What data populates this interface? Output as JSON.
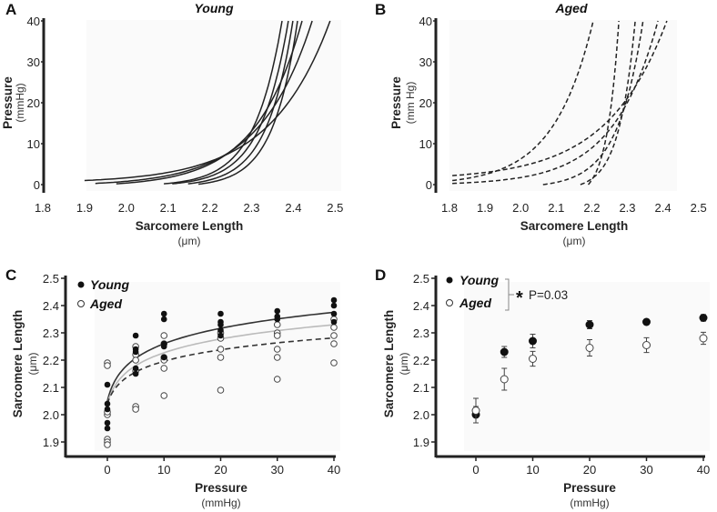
{
  "chart_data": [
    {
      "panel": "A",
      "type": "line",
      "title": "Young",
      "xlabel": "Sarcomere Length",
      "xunit": "(μm)",
      "ylabel": "Pressure",
      "yunit": "(mmHg)",
      "xlim": [
        1.8,
        2.5
      ],
      "ylim": [
        0,
        40
      ],
      "xticks": [
        "1.8",
        "1.9",
        "2.0",
        "2.1",
        "2.2",
        "2.3",
        "2.4",
        "2.5"
      ],
      "yticks": [
        "0",
        "10",
        "20",
        "30",
        "40"
      ],
      "curve_model": "P = p0 + (40-p0)*(exp(k*(SL-sl0))-1)/(exp(k*(sl40-sl0))-1)",
      "series": [
        {
          "sl0": 1.9,
          "p0": 1.0,
          "sl40": 2.488,
          "k": 7
        },
        {
          "sl0": 1.926,
          "p0": 0.3,
          "sl40": 2.445,
          "k": 8
        },
        {
          "sl0": 1.976,
          "p0": 0.2,
          "sl40": 2.421,
          "k": 9
        },
        {
          "sl0": 2.09,
          "p0": 0.2,
          "sl40": 2.373,
          "k": 15
        },
        {
          "sl0": 2.11,
          "p0": 0.2,
          "sl40": 2.388,
          "k": 15
        },
        {
          "sl0": 2.148,
          "p0": 0.2,
          "sl40": 2.399,
          "k": 16
        },
        {
          "sl0": 2.173,
          "p0": 0.1,
          "sl40": 2.41,
          "k": 17
        }
      ]
    },
    {
      "panel": "B",
      "type": "line",
      "title": "Aged",
      "xlabel": "Sarcomere Length",
      "xunit": "(μm)",
      "ylabel": "Pressure",
      "yunit": "(mm Hg)",
      "xlim": [
        1.8,
        2.5
      ],
      "ylim": [
        0,
        40
      ],
      "xticks": [
        "1.8",
        "1.9",
        "2.0",
        "2.1",
        "2.2",
        "2.3",
        "2.4",
        "2.5"
      ],
      "yticks": [
        "0",
        "10",
        "20",
        "30",
        "40"
      ],
      "series": [
        {
          "sl0": 1.808,
          "p0": 2.2,
          "sl40": 2.411,
          "k": 6
        },
        {
          "sl0": 1.808,
          "p0": 1.0,
          "sl40": 2.204,
          "k": 9
        },
        {
          "sl0": 1.808,
          "p0": 0.3,
          "sl40": 2.386,
          "k": 8
        },
        {
          "sl0": 2.063,
          "p0": 0.0,
          "sl40": 2.344,
          "k": 14
        },
        {
          "sl0": 2.168,
          "p0": 0.0,
          "sl40": 2.322,
          "k": 22
        },
        {
          "sl0": 2.19,
          "p0": 0.0,
          "sl40": 2.276,
          "k": 30
        }
      ]
    },
    {
      "panel": "C",
      "type": "scatter",
      "xlabel": "Pressure",
      "xunit": "(mmHg)",
      "ylabel": "Sarcomere Length",
      "yunit": "(μm)",
      "xlim": [
        -5,
        40
      ],
      "ylim": [
        1.85,
        2.5
      ],
      "xticks": [
        "0",
        "10",
        "20",
        "30",
        "40"
      ],
      "yticks": [
        "1.9",
        "2.0",
        "2.1",
        "2.2",
        "2.3",
        "2.4",
        "2.5"
      ],
      "legend": [
        "Young",
        "Aged"
      ],
      "legend_position": "top-left",
      "young": {
        "0": [
          2.11,
          2.04,
          2.02,
          1.97,
          1.95
        ],
        "5": [
          2.29,
          2.24,
          2.23,
          2.17,
          2.15
        ],
        "10": [
          2.37,
          2.35,
          2.26,
          2.25,
          2.21
        ],
        "20": [
          2.37,
          2.34,
          2.33,
          2.31,
          2.29
        ],
        "30": [
          2.38,
          2.36,
          2.35
        ],
        "40": [
          2.42,
          2.4,
          2.37,
          2.34
        ]
      },
      "aged": {
        "0": [
          2.19,
          2.18,
          2.0,
          2.01,
          1.91,
          1.9,
          1.89
        ],
        "5": [
          2.25,
          2.22,
          2.2,
          2.16,
          2.03,
          2.02
        ],
        "10": [
          2.29,
          2.26,
          2.21,
          2.2,
          2.17,
          2.07
        ],
        "20": [
          2.3,
          2.28,
          2.24,
          2.21,
          2.09
        ],
        "30": [
          2.33,
          2.3,
          2.29,
          2.24,
          2.21,
          2.13
        ],
        "40": [
          2.35,
          2.32,
          2.29,
          2.26,
          2.19
        ]
      },
      "fit_model": "SL = a + b*ln(1+P)",
      "fits": [
        {
          "name": "young-fit",
          "a": 2.05,
          "b": 0.0876,
          "color": "#333333",
          "dash": false
        },
        {
          "name": "gray-fit",
          "a": 2.04,
          "b": 0.078,
          "color": "#bbbbbb",
          "dash": false
        },
        {
          "name": "aged-fit",
          "a": 2.04,
          "b": 0.065,
          "color": "#333333",
          "dash": true
        }
      ]
    },
    {
      "panel": "D",
      "type": "scatter",
      "xlabel": "Pressure",
      "xunit": "(mmHg)",
      "ylabel": "Sarcomere Length",
      "yunit": "(μm)",
      "xlim": [
        -5,
        40
      ],
      "ylim": [
        1.85,
        2.5
      ],
      "xticks": [
        "0",
        "10",
        "20",
        "30",
        "40"
      ],
      "yticks": [
        "1.9",
        "2.0",
        "2.1",
        "2.2",
        "2.3",
        "2.4",
        "2.5"
      ],
      "legend": [
        "Young",
        "Aged"
      ],
      "annotation": "P=0.03",
      "x": [
        0,
        5,
        10,
        20,
        30,
        40
      ],
      "young_mean": [
        2.0,
        2.23,
        2.27,
        2.33,
        2.34,
        2.355
      ],
      "young_err": [
        0.03,
        0.02,
        0.025,
        0.015,
        0.01,
        0.012
      ],
      "aged_mean": [
        2.015,
        2.13,
        2.205,
        2.245,
        2.255,
        2.28
      ],
      "aged_err": [
        0.045,
        0.04,
        0.027,
        0.03,
        0.027,
        0.022
      ]
    }
  ]
}
